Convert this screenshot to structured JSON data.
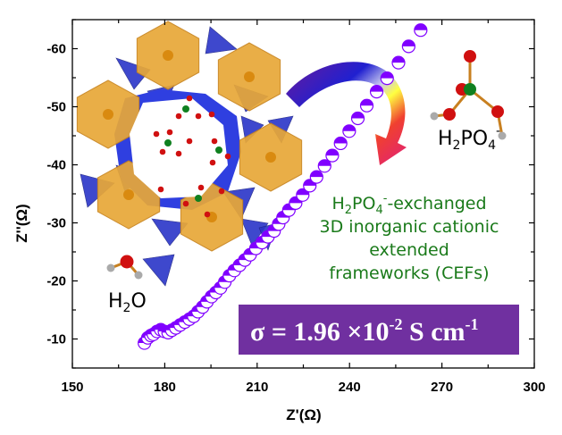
{
  "chart_data": {
    "type": "scatter",
    "title": "",
    "xlabel": "Z'(Ω)",
    "ylabel": "Z''(Ω)",
    "xlim": [
      150,
      300
    ],
    "ylim": [
      -65,
      -5
    ],
    "y_inverted": true,
    "xticks": [
      "150",
      "180",
      "210",
      "240",
      "270",
      "300"
    ],
    "yticks": [
      "-60",
      "-50",
      "-40",
      "-30",
      "-20",
      "-10"
    ],
    "grid": false,
    "marker": "half-filled circle",
    "series": [
      {
        "name": "H2PO4- exchanged CEF",
        "color": "#8000ff",
        "x": [
          173.4,
          174.5,
          175.5,
          176.3,
          177.5,
          178.7,
          179.9,
          181.1,
          182.3,
          183.6,
          185.0,
          186.5,
          188.0,
          189.4,
          190.8,
          192.3,
          193.7,
          195.2,
          196.6,
          198.1,
          199.5,
          201.0,
          202.6,
          204.3,
          206.0,
          207.7,
          209.6,
          211.6,
          213.5,
          215.5,
          217.0,
          218.4,
          220.3,
          222.5,
          224.8,
          227.1,
          229.3,
          231.9,
          234.4,
          237.1,
          239.9,
          242.7,
          245.6,
          248.8,
          252.2,
          255.9,
          259.2,
          263.1
        ],
        "y": [
          -9.3,
          -10.2,
          -10.6,
          -10.8,
          -11.3,
          -11.6,
          -11.3,
          -11.1,
          -11.5,
          -11.9,
          -12.4,
          -12.9,
          -13.4,
          -13.9,
          -14.7,
          -15.5,
          -16.4,
          -17.3,
          -18.0,
          -18.8,
          -19.8,
          -20.9,
          -21.8,
          -22.7,
          -23.6,
          -24.5,
          -25.6,
          -26.6,
          -27.6,
          -28.6,
          -29.8,
          -30.9,
          -32.2,
          -33.4,
          -34.8,
          -36.4,
          -37.9,
          -39.8,
          -41.6,
          -43.7,
          -45.8,
          -48.0,
          -50.2,
          -52.6,
          -54.9,
          -57.6,
          -60.4,
          -63.2
        ]
      }
    ],
    "annotations": {
      "anion_label": {
        "main": "H",
        "sub1": "2",
        "mid": "PO",
        "sub2": "4",
        "sup": "-"
      },
      "water_label": {
        "main": "H",
        "sub": "2",
        "end": "O"
      },
      "description": {
        "line1_a": "H",
        "line1_sub1": "2",
        "line1_b": "PO",
        "line1_sub2": "4",
        "line1_sup": "-",
        "line1_c": "-exchanged",
        "line2": "3D inorganic cationic",
        "line3": "extended",
        "line4": "frameworks (CEFs)"
      },
      "conductivity": {
        "prefix": "σ = 1.96 ×10",
        "exp": "-2",
        "unit": " S cm",
        "unit_exp": "-1"
      }
    },
    "colors": {
      "marker": "#8000ff",
      "box": "#7030a0",
      "text_green": "#1a7a1a",
      "framework_orange": "#e8a838",
      "framework_blue": "#2a35c8"
    }
  }
}
